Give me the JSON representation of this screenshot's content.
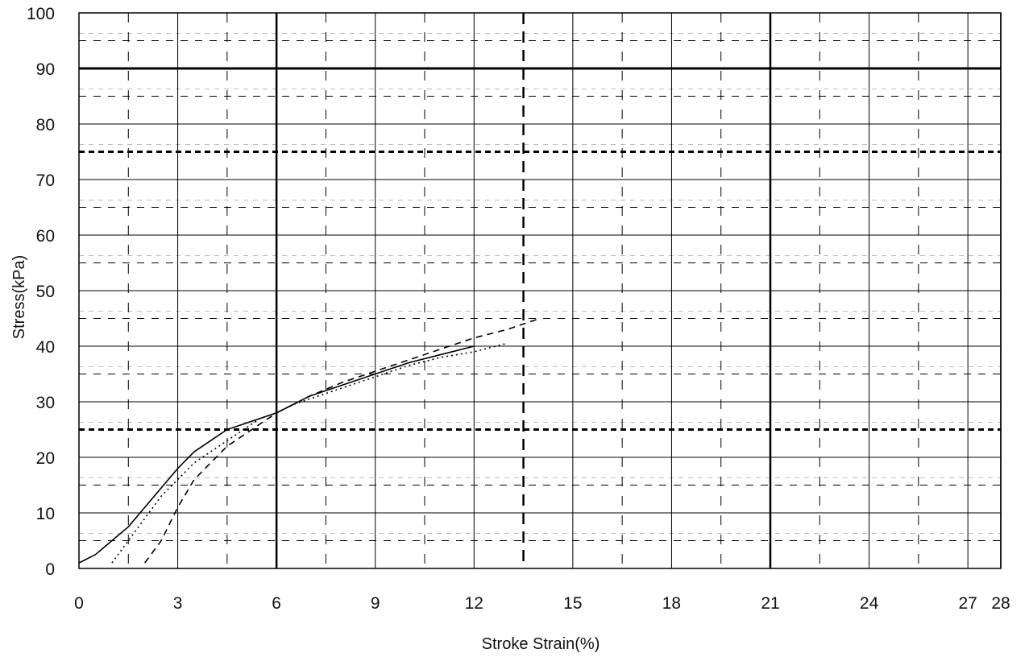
{
  "chart_data": {
    "type": "line",
    "title": "",
    "xlabel": "Stroke Strain(%)",
    "ylabel": "Stress(kPa)",
    "xlim": [
      0,
      28
    ],
    "ylim": [
      0,
      100
    ],
    "x_ticks": [
      0,
      3,
      6,
      9,
      12,
      15,
      18,
      21,
      24,
      27,
      28
    ],
    "y_ticks": [
      0,
      10,
      20,
      30,
      40,
      50,
      60,
      70,
      80,
      90,
      100
    ],
    "x_tick_labels": [
      "0",
      "3",
      "6",
      "9",
      "12",
      "15",
      "18",
      "21",
      "24",
      "27",
      "28"
    ],
    "y_tick_labels": [
      "0",
      "10",
      "20",
      "30",
      "40",
      "50",
      "60",
      "70",
      "80",
      "90",
      "100"
    ],
    "grid": true,
    "legend": "none",
    "series": [
      {
        "style": "solid",
        "x": [
          0,
          0.5,
          1.0,
          1.5,
          2.0,
          2.5,
          3.0,
          3.5,
          4.0,
          4.5,
          5.0,
          5.5,
          6.0,
          6.5,
          7.0,
          8.0,
          9.0,
          10.0,
          11.0,
          12.0
        ],
        "y": [
          1,
          2.5,
          5,
          7.5,
          11,
          14.5,
          18,
          21,
          23,
          25,
          26,
          27,
          28,
          29.5,
          31,
          33,
          35,
          37,
          38.5,
          40
        ]
      },
      {
        "style": "dotted",
        "x": [
          1.0,
          1.5,
          2.0,
          2.5,
          3.0,
          3.5,
          4.0,
          4.5,
          5.0,
          5.5,
          6.0,
          6.5,
          7.0,
          8.0,
          9.0,
          10.0,
          11.0,
          12.0,
          13.0
        ],
        "y": [
          1,
          5,
          9,
          13,
          16,
          19,
          21,
          23,
          25,
          27,
          28,
          29.5,
          30.5,
          32.5,
          34.5,
          36.5,
          38,
          39,
          40.5
        ]
      },
      {
        "style": "dashed",
        "x": [
          2.0,
          2.5,
          3.0,
          3.5,
          4.0,
          4.5,
          5.0,
          5.5,
          6.0,
          6.5,
          7.0,
          8.0,
          9.0,
          10.0,
          11.0,
          12.0,
          13.0,
          14.0
        ],
        "y": [
          1,
          5,
          11,
          16,
          19,
          22,
          24,
          26,
          28,
          29.5,
          31,
          33.5,
          35.5,
          37.5,
          39.5,
          41.5,
          43,
          45
        ]
      }
    ],
    "colors": {
      "line": "#000000",
      "background": "#ffffff"
    }
  }
}
